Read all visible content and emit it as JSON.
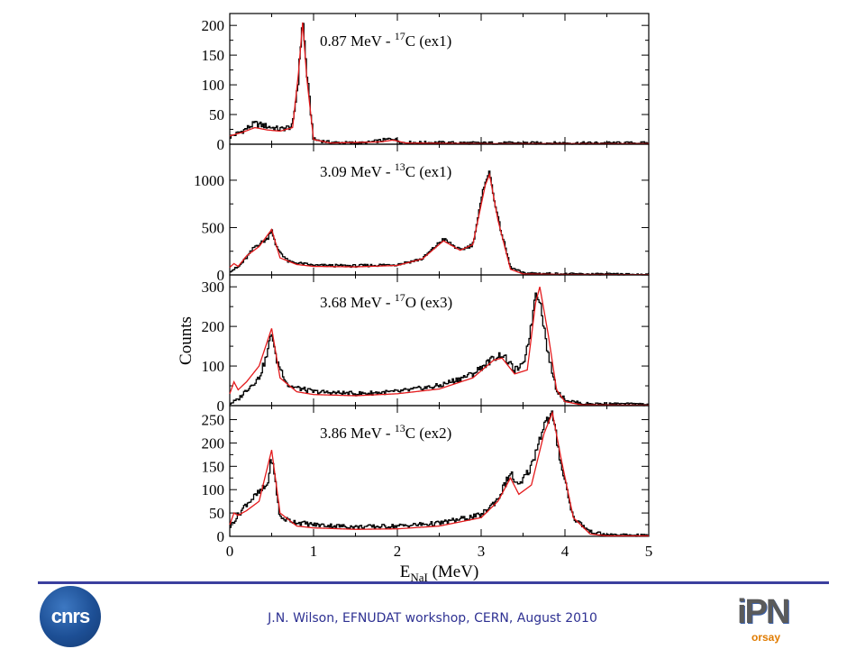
{
  "chart_data": {
    "type": "line",
    "xlabel": "E",
    "xlabel_sub": "NaI",
    "xlabel_unit": " (MeV)",
    "ylabel": "Counts",
    "xlim": [
      0,
      5
    ],
    "xticks": [
      "0",
      "1",
      "2",
      "3",
      "4",
      "5"
    ],
    "grid": false,
    "legend": "none",
    "series_colors": {
      "measured": "#000000",
      "simulated": "#e41a1c"
    },
    "panels": [
      {
        "title_pre": "0.87 MeV - ",
        "title_sup": "17",
        "title_post": "C (ex1)",
        "ylim": [
          0,
          220
        ],
        "yticks": [
          0,
          50,
          100,
          150,
          200
        ],
        "measured": [
          [
            0,
            12
          ],
          [
            0.15,
            22
          ],
          [
            0.3,
            35
          ],
          [
            0.45,
            30
          ],
          [
            0.6,
            25
          ],
          [
            0.75,
            30
          ],
          [
            0.82,
            110
          ],
          [
            0.87,
            215
          ],
          [
            0.92,
            120
          ],
          [
            1.0,
            8
          ],
          [
            1.2,
            3
          ],
          [
            1.6,
            2
          ],
          [
            1.85,
            7
          ],
          [
            1.95,
            10
          ],
          [
            2.05,
            3
          ],
          [
            3,
            2
          ],
          [
            4,
            2
          ],
          [
            5,
            2
          ]
        ],
        "simulated": [
          [
            0,
            14
          ],
          [
            0.15,
            20
          ],
          [
            0.3,
            28
          ],
          [
            0.45,
            24
          ],
          [
            0.6,
            22
          ],
          [
            0.75,
            28
          ],
          [
            0.82,
            120
          ],
          [
            0.87,
            205
          ],
          [
            0.92,
            110
          ],
          [
            1.0,
            8
          ],
          [
            1.2,
            2
          ],
          [
            1.8,
            4
          ],
          [
            1.95,
            7
          ],
          [
            2.1,
            2
          ],
          [
            3,
            1
          ],
          [
            5,
            1
          ]
        ]
      },
      {
        "title_pre": "3.09 MeV - ",
        "title_sup": "13",
        "title_post": "C (ex1)",
        "ylim": [
          0,
          1380
        ],
        "yticks": [
          0,
          500,
          1000
        ],
        "measured": [
          [
            0,
            40
          ],
          [
            0.1,
            80
          ],
          [
            0.2,
            180
          ],
          [
            0.3,
            300
          ],
          [
            0.45,
            380
          ],
          [
            0.5,
            490
          ],
          [
            0.55,
            300
          ],
          [
            0.7,
            140
          ],
          [
            1.0,
            100
          ],
          [
            1.5,
            95
          ],
          [
            2.0,
            110
          ],
          [
            2.3,
            170
          ],
          [
            2.55,
            380
          ],
          [
            2.75,
            260
          ],
          [
            2.9,
            320
          ],
          [
            3.05,
            1000
          ],
          [
            3.1,
            1080
          ],
          [
            3.2,
            600
          ],
          [
            3.35,
            80
          ],
          [
            3.5,
            20
          ],
          [
            4,
            10
          ],
          [
            5,
            5
          ]
        ],
        "simulated": [
          [
            0,
            80
          ],
          [
            0.05,
            120
          ],
          [
            0.1,
            90
          ],
          [
            0.2,
            200
          ],
          [
            0.35,
            300
          ],
          [
            0.5,
            480
          ],
          [
            0.6,
            180
          ],
          [
            0.8,
            110
          ],
          [
            1.0,
            90
          ],
          [
            1.5,
            85
          ],
          [
            2.0,
            100
          ],
          [
            2.3,
            170
          ],
          [
            2.55,
            360
          ],
          [
            2.75,
            260
          ],
          [
            2.9,
            320
          ],
          [
            3.05,
            950
          ],
          [
            3.1,
            1060
          ],
          [
            3.2,
            580
          ],
          [
            3.35,
            60
          ],
          [
            3.5,
            10
          ],
          [
            4,
            5
          ],
          [
            5,
            3
          ]
        ]
      },
      {
        "title_pre": "3.68 MeV - ",
        "title_sup": "17",
        "title_post": "O (ex3)",
        "ylim": [
          0,
          330
        ],
        "yticks": [
          0,
          100,
          200,
          300
        ],
        "measured": [
          [
            0,
            5
          ],
          [
            0.1,
            15
          ],
          [
            0.2,
            40
          ],
          [
            0.35,
            70
          ],
          [
            0.45,
            130
          ],
          [
            0.5,
            190
          ],
          [
            0.55,
            120
          ],
          [
            0.7,
            50
          ],
          [
            1.0,
            35
          ],
          [
            1.5,
            30
          ],
          [
            2.0,
            35
          ],
          [
            2.5,
            50
          ],
          [
            2.9,
            80
          ],
          [
            3.15,
            120
          ],
          [
            3.25,
            130
          ],
          [
            3.4,
            90
          ],
          [
            3.5,
            100
          ],
          [
            3.6,
            200
          ],
          [
            3.65,
            290
          ],
          [
            3.7,
            270
          ],
          [
            3.8,
            130
          ],
          [
            3.9,
            40
          ],
          [
            4.0,
            15
          ],
          [
            4.2,
            5
          ],
          [
            5,
            3
          ]
        ],
        "simulated": [
          [
            0,
            30
          ],
          [
            0.05,
            60
          ],
          [
            0.1,
            40
          ],
          [
            0.2,
            60
          ],
          [
            0.35,
            100
          ],
          [
            0.5,
            195
          ],
          [
            0.6,
            70
          ],
          [
            0.8,
            35
          ],
          [
            1.0,
            28
          ],
          [
            1.5,
            25
          ],
          [
            2.0,
            30
          ],
          [
            2.5,
            42
          ],
          [
            2.9,
            70
          ],
          [
            3.15,
            115
          ],
          [
            3.25,
            120
          ],
          [
            3.4,
            80
          ],
          [
            3.55,
            90
          ],
          [
            3.65,
            260
          ],
          [
            3.7,
            300
          ],
          [
            3.8,
            180
          ],
          [
            3.9,
            40
          ],
          [
            4.0,
            10
          ],
          [
            4.2,
            2
          ],
          [
            5,
            1
          ]
        ]
      },
      {
        "title_pre": "3.86 MeV - ",
        "title_sup": "13",
        "title_post": "C (ex2)",
        "ylim": [
          0,
          280
        ],
        "yticks": [
          0,
          50,
          100,
          150,
          200,
          250
        ],
        "measured": [
          [
            0,
            20
          ],
          [
            0.1,
            45
          ],
          [
            0.2,
            70
          ],
          [
            0.3,
            85
          ],
          [
            0.45,
            110
          ],
          [
            0.5,
            170
          ],
          [
            0.55,
            110
          ],
          [
            0.6,
            40
          ],
          [
            0.8,
            30
          ],
          [
            1.0,
            25
          ],
          [
            1.5,
            20
          ],
          [
            2.0,
            22
          ],
          [
            2.5,
            28
          ],
          [
            3.0,
            45
          ],
          [
            3.2,
            80
          ],
          [
            3.35,
            135
          ],
          [
            3.45,
            105
          ],
          [
            3.6,
            150
          ],
          [
            3.75,
            240
          ],
          [
            3.85,
            260
          ],
          [
            3.95,
            160
          ],
          [
            4.1,
            40
          ],
          [
            4.3,
            10
          ],
          [
            4.5,
            3
          ],
          [
            5,
            2
          ]
        ],
        "simulated": [
          [
            0,
            25
          ],
          [
            0.05,
            50
          ],
          [
            0.1,
            45
          ],
          [
            0.2,
            55
          ],
          [
            0.35,
            75
          ],
          [
            0.5,
            185
          ],
          [
            0.6,
            50
          ],
          [
            0.8,
            22
          ],
          [
            1.0,
            18
          ],
          [
            1.5,
            15
          ],
          [
            2.0,
            16
          ],
          [
            2.5,
            22
          ],
          [
            3.0,
            40
          ],
          [
            3.2,
            75
          ],
          [
            3.35,
            125
          ],
          [
            3.45,
            90
          ],
          [
            3.6,
            110
          ],
          [
            3.75,
            220
          ],
          [
            3.85,
            265
          ],
          [
            3.95,
            170
          ],
          [
            4.1,
            40
          ],
          [
            4.3,
            5
          ],
          [
            4.5,
            1
          ],
          [
            5,
            1
          ]
        ]
      }
    ]
  },
  "footer": {
    "text": "J.N. Wilson,  EFNUDAT workshop, CERN, August 2010",
    "logo_cnrs": "cnrs",
    "logo_ipn_main": "iPN",
    "logo_ipn_sub": "orsay"
  }
}
